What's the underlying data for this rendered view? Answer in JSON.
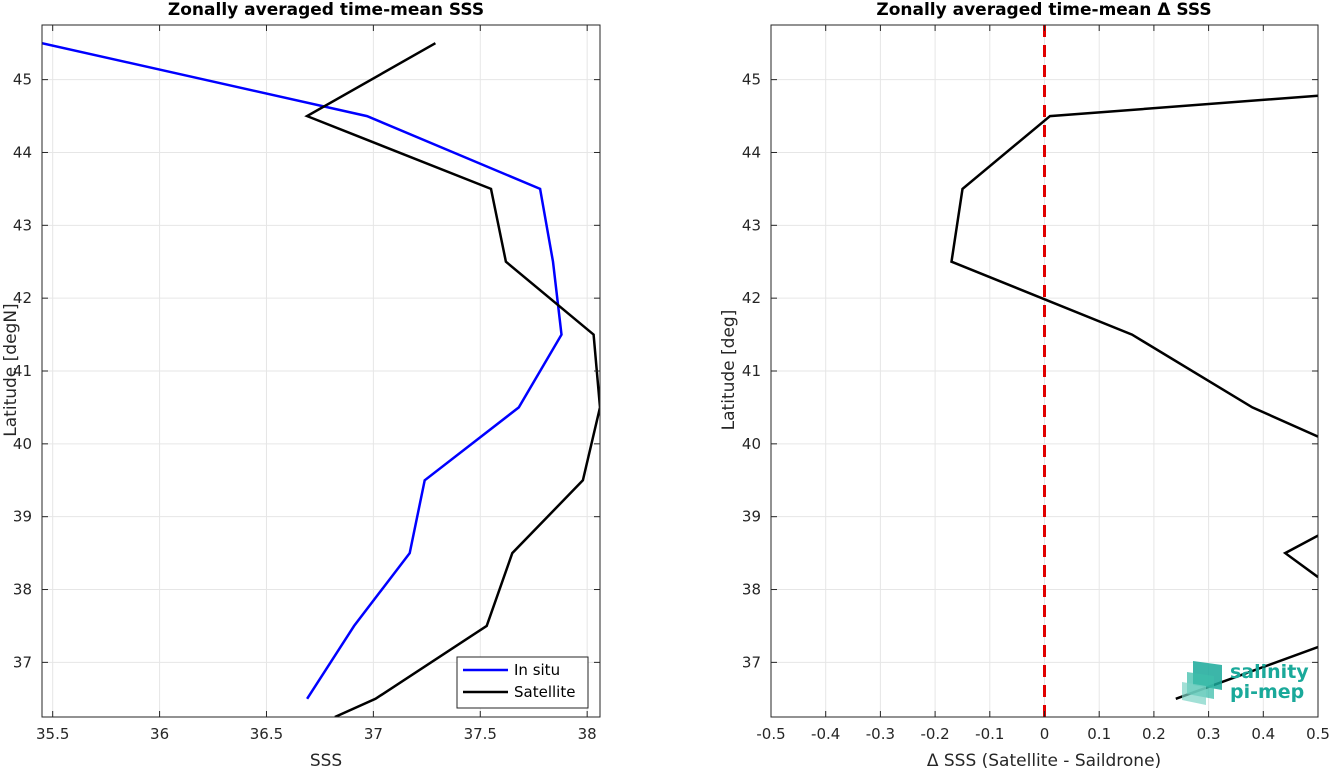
{
  "chart_data": [
    {
      "type": "line",
      "title": "Zonally averaged time-mean SSS",
      "xlabel": "SSS",
      "ylabel": "Latitude [degN]",
      "xlim": [
        35.45,
        38.06
      ],
      "ylim": [
        36.25,
        45.75
      ],
      "xticks": [
        35.5,
        36,
        36.5,
        37,
        37.5,
        38
      ],
      "xtick_labels": [
        "35.5",
        "36",
        "36.5",
        "37",
        "37.5",
        "38"
      ],
      "yticks": [
        37,
        38,
        39,
        40,
        41,
        42,
        43,
        44,
        45
      ],
      "ytick_labels": [
        "37",
        "38",
        "39",
        "40",
        "41",
        "42",
        "43",
        "44",
        "45"
      ],
      "grid": true,
      "legend_position": "bottom-right",
      "series": [
        {
          "name": "In situ",
          "color": "#0000ff",
          "points": [
            [
              35.45,
              45.5
            ],
            [
              36.97,
              44.5
            ],
            [
              37.78,
              43.5
            ],
            [
              37.84,
              42.5
            ],
            [
              37.88,
              41.5
            ],
            [
              37.68,
              40.5
            ],
            [
              37.24,
              39.5
            ],
            [
              37.17,
              38.5
            ],
            [
              36.91,
              37.5
            ],
            [
              36.69,
              36.5
            ]
          ]
        },
        {
          "name": "Satellite",
          "color": "#000000",
          "points": [
            [
              37.29,
              45.5
            ],
            [
              36.69,
              44.5
            ],
            [
              37.55,
              43.5
            ],
            [
              37.62,
              42.5
            ],
            [
              38.03,
              41.5
            ],
            [
              38.06,
              40.5
            ],
            [
              37.98,
              39.5
            ],
            [
              37.65,
              38.5
            ],
            [
              37.53,
              37.5
            ],
            [
              37.01,
              36.5
            ],
            [
              36.82,
              36.25
            ]
          ]
        }
      ]
    },
    {
      "type": "line",
      "title": "Zonally averaged time-mean Δ SSS",
      "xlabel": "Δ SSS (Satellite - Saildrone)",
      "ylabel": "Latitude [deg]",
      "xlim": [
        -0.5,
        0.5
      ],
      "ylim": [
        36.25,
        45.75
      ],
      "xticks": [
        -0.5,
        -0.4,
        -0.3,
        -0.2,
        -0.1,
        0,
        0.1,
        0.2,
        0.3,
        0.4,
        0.5
      ],
      "xtick_labels": [
        "-0.5",
        "-0.4",
        "-0.3",
        "-0.2",
        "-0.1",
        "0",
        "0.1",
        "0.2",
        "0.3",
        "0.4",
        "0.5"
      ],
      "yticks": [
        37,
        38,
        39,
        40,
        41,
        42,
        43,
        44,
        45
      ],
      "ytick_labels": [
        "37",
        "38",
        "39",
        "40",
        "41",
        "42",
        "43",
        "44",
        "45"
      ],
      "grid": true,
      "reference_line": {
        "x": 0,
        "color": "#e00000",
        "style": "dashed"
      },
      "series": [
        {
          "color": "#000000",
          "segments": [
            [
              [
                0.5,
                44.78
              ],
              [
                0.01,
                44.5
              ],
              [
                -0.15,
                43.5
              ],
              [
                -0.17,
                42.5
              ],
              [
                0.16,
                41.5
              ],
              [
                0.38,
                40.5
              ],
              [
                0.5,
                40.1
              ]
            ],
            [
              [
                0.5,
                38.74
              ],
              [
                0.44,
                38.5
              ],
              [
                0.5,
                38.17
              ]
            ],
            [
              [
                0.5,
                37.21
              ],
              [
                0.24,
                36.5
              ]
            ]
          ]
        }
      ]
    }
  ],
  "legend": {
    "items": [
      {
        "label": "In situ",
        "color": "#0000ff"
      },
      {
        "label": "Satellite",
        "color": "#000000"
      }
    ]
  },
  "logo": {
    "line1": "salinity",
    "line2": "pi-mep",
    "color": "#1aa99a"
  }
}
